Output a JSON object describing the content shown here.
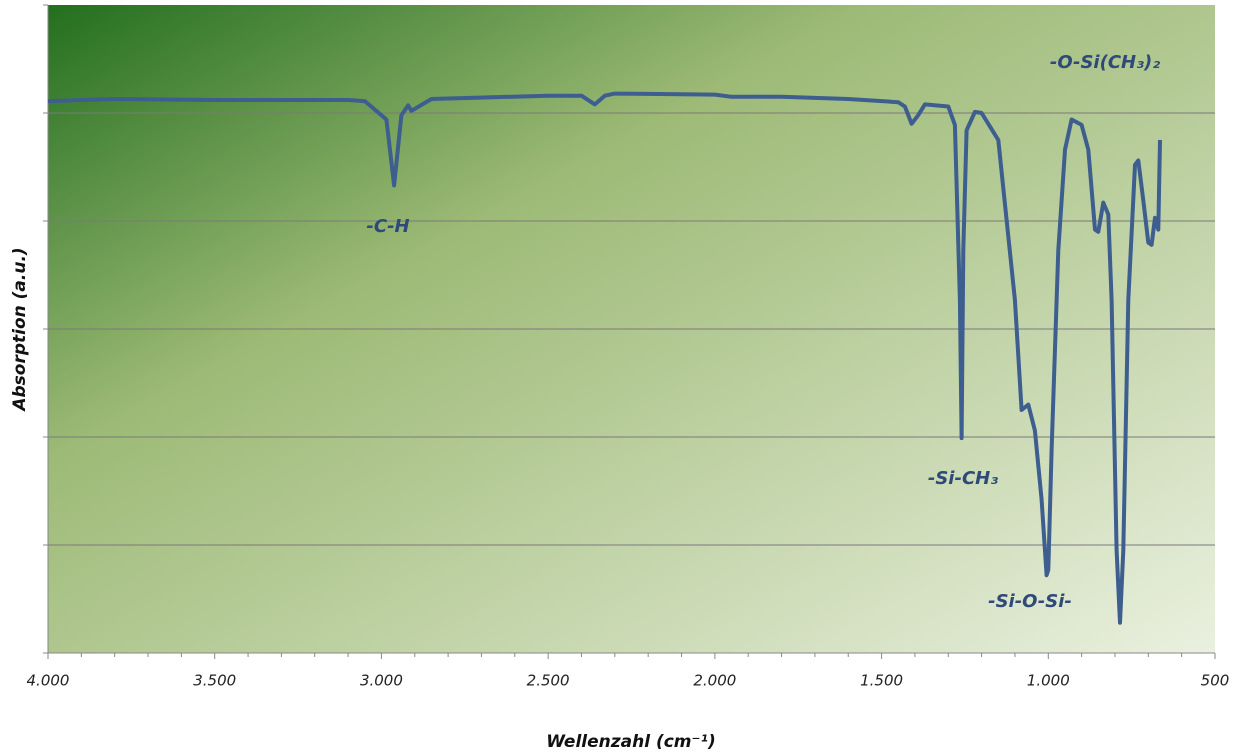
{
  "chart_data": {
    "type": "line",
    "x_label": "Wellenzahl (cm⁻¹)",
    "y_label": "Absorption (a.u.)",
    "xlim": [
      4000,
      500
    ],
    "xticks": [
      {
        "value": 4000,
        "label": "4.000"
      },
      {
        "value": 3500,
        "label": "3.500"
      },
      {
        "value": 3000,
        "label": "3.000"
      },
      {
        "value": 2500,
        "label": "2.500"
      },
      {
        "value": 2000,
        "label": "2.000"
      },
      {
        "value": 1500,
        "label": "1.500"
      },
      {
        "value": 1000,
        "label": "1.000"
      },
      500
    ],
    "xminorticks": [
      3900,
      3800,
      3700,
      3600,
      3400,
      3300,
      3200,
      3100,
      2900,
      2800,
      2700,
      2600,
      2400,
      2300,
      2200,
      2100,
      1900,
      1800,
      1700,
      1600,
      1400,
      1300,
      1200,
      1100,
      900,
      800,
      700,
      600
    ],
    "ylim": [
      0,
      6
    ],
    "yticks": [
      0,
      1,
      2,
      3,
      4,
      5,
      6
    ],
    "ytick_labels": false,
    "grid": true,
    "series": [
      {
        "color": "#3d5e8f",
        "x": [
          4000,
          3800,
          3500,
          3100,
          3050,
          2985,
          2962,
          2940,
          2920,
          2910,
          2850,
          2500,
          2400,
          2360,
          2330,
          2300,
          2000,
          1950,
          1800,
          1600,
          1450,
          1430,
          1410,
          1390,
          1370,
          1300,
          1280,
          1265,
          1260,
          1255,
          1245,
          1220,
          1200,
          1150,
          1100,
          1080,
          1060,
          1040,
          1020,
          1005,
          1000,
          990,
          970,
          950,
          930,
          900,
          880,
          860,
          850,
          835,
          820,
          810,
          795,
          785,
          775,
          760,
          740,
          730,
          715,
          700,
          690,
          680,
          670,
          665
        ],
        "values": [
          5.11,
          5.13,
          5.12,
          5.12,
          5.11,
          4.94,
          4.33,
          4.98,
          5.07,
          5.02,
          5.13,
          5.16,
          5.16,
          5.08,
          5.16,
          5.18,
          5.17,
          5.15,
          5.15,
          5.13,
          5.1,
          5.06,
          4.9,
          4.98,
          5.08,
          5.06,
          4.89,
          3.27,
          1.99,
          3.73,
          4.84,
          5.01,
          5.0,
          4.75,
          3.27,
          2.25,
          2.3,
          2.06,
          1.42,
          0.72,
          0.77,
          1.88,
          3.73,
          4.66,
          4.94,
          4.89,
          4.66,
          3.92,
          3.9,
          4.17,
          4.06,
          3.27,
          0.95,
          0.28,
          0.95,
          3.27,
          4.52,
          4.56,
          4.19,
          3.8,
          3.78,
          4.03,
          3.92,
          4.75
        ]
      }
    ],
    "annotations": [
      "-C-H",
      "-Si-CH₃",
      "-Si-O-Si-",
      "-O-Si(CH₃)₂"
    ]
  }
}
